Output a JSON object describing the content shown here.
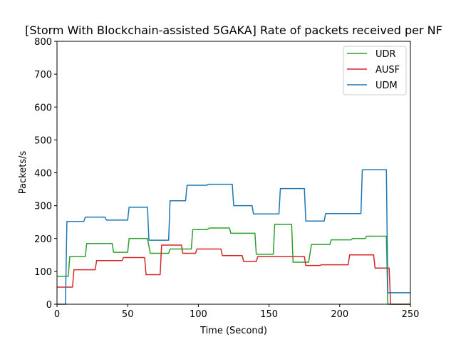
{
  "chart_data": {
    "type": "line",
    "title": "[Storm With Blockchain-assisted 5GAKA] Rate of packets received per NF",
    "xlabel": "Time (Second)",
    "ylabel": "Packets/s",
    "xlim": [
      0,
      250
    ],
    "ylim": [
      0,
      800
    ],
    "xticks": [
      0,
      50,
      100,
      150,
      200,
      250
    ],
    "yticks": [
      0,
      100,
      200,
      300,
      400,
      500,
      600,
      700,
      800
    ],
    "grid": false,
    "legend_position": "top-right",
    "series": [
      {
        "name": "UDR",
        "color": "#2ca02c",
        "x": [
          0,
          8,
          9,
          20,
          21,
          39,
          40,
          50,
          51,
          64,
          66,
          79,
          80,
          95,
          96,
          106,
          108,
          122,
          123,
          140,
          141,
          153,
          154,
          166,
          167,
          178,
          180,
          193,
          194,
          208,
          209,
          218,
          219,
          233,
          234,
          250
        ],
        "y": [
          85,
          85,
          145,
          145,
          185,
          185,
          158,
          158,
          200,
          200,
          155,
          155,
          168,
          168,
          227,
          227,
          232,
          232,
          216,
          216,
          152,
          152,
          243,
          243,
          128,
          128,
          182,
          182,
          196,
          196,
          200,
          200,
          207,
          207,
          0,
          0
        ]
      },
      {
        "name": "AUSF",
        "color": "#d62728",
        "x": [
          0,
          11,
          12,
          27,
          28,
          46,
          47,
          62,
          63,
          73,
          74,
          88,
          89,
          98,
          99,
          116,
          117,
          131,
          132,
          141,
          142,
          175,
          176,
          186,
          187,
          206,
          207,
          224,
          225,
          235,
          236,
          250
        ],
        "y": [
          52,
          52,
          105,
          105,
          133,
          133,
          142,
          142,
          90,
          90,
          180,
          180,
          155,
          155,
          168,
          168,
          148,
          148,
          130,
          130,
          145,
          145,
          118,
          118,
          120,
          120,
          150,
          150,
          110,
          110,
          0,
          0
        ]
      },
      {
        "name": "UDM",
        "color": "#1f77b4",
        "x": [
          0,
          6,
          7,
          19,
          20,
          34,
          35,
          50,
          51,
          64,
          65,
          79,
          80,
          91,
          92,
          106,
          107,
          124,
          125,
          138,
          139,
          157,
          158,
          175,
          176,
          189,
          190,
          215,
          216,
          233,
          234,
          250
        ],
        "y": [
          0,
          0,
          252,
          252,
          265,
          265,
          256,
          256,
          295,
          295,
          195,
          195,
          315,
          315,
          362,
          362,
          365,
          365,
          300,
          300,
          275,
          275,
          352,
          352,
          253,
          253,
          276,
          276,
          409,
          409,
          35,
          35
        ]
      }
    ]
  }
}
